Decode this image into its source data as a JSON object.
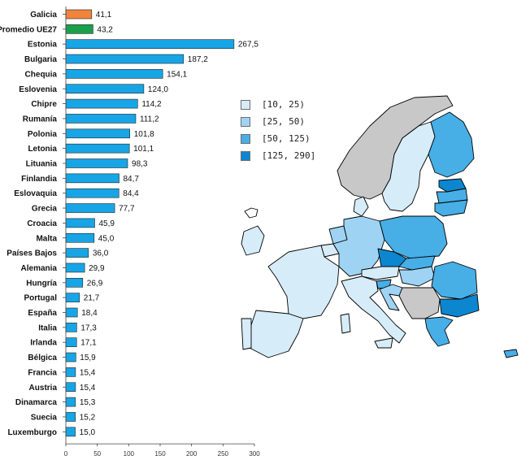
{
  "chart_data": {
    "type": "bar",
    "orientation": "horizontal",
    "categories": [
      "Galicia",
      "Promedio UE27",
      "Estonia",
      "Bulgaria",
      "Chequia",
      "Eslovenia",
      "Chipre",
      "Rumanía",
      "Polonia",
      "Letonia",
      "Lituania",
      "Finlandia",
      "Eslovaquia",
      "Grecia",
      "Croacia",
      "Malta",
      "Países Bajos",
      "Alemania",
      "Hungría",
      "Portugal",
      "España",
      "Italia",
      "Irlanda",
      "Bélgica",
      "Francia",
      "Austria",
      "Dinamarca",
      "Suecia",
      "Luxemburgo"
    ],
    "values": [
      41.1,
      43.2,
      267.5,
      187.2,
      154.1,
      124.0,
      114.2,
      111.2,
      101.8,
      101.1,
      98.3,
      84.7,
      84.4,
      77.7,
      45.9,
      45.0,
      36.0,
      29.9,
      26.9,
      21.7,
      18.4,
      17.3,
      17.1,
      15.9,
      15.4,
      15.4,
      15.3,
      15.2,
      15.0
    ],
    "value_labels": [
      "41,1",
      "43,2",
      "267,5",
      "187,2",
      "154,1",
      "124,0",
      "114,2",
      "111,2",
      "101,8",
      "101,1",
      "98,3",
      "84,7",
      "84,4",
      "77,7",
      "45,9",
      "45,0",
      "36,0",
      "29,9",
      "26,9",
      "21,7",
      "18,4",
      "17,3",
      "17,1",
      "15,9",
      "15,4",
      "15,4",
      "15,3",
      "15,2",
      "15,0"
    ],
    "xlim": [
      0,
      300
    ],
    "xticks": [
      "0",
      "50",
      "100",
      "150",
      "200",
      "250",
      "300"
    ],
    "grid": false,
    "colors": {
      "Galicia": "#f0843c",
      "Promedio UE27": "#1aa04a",
      "default": "#17a5e6"
    }
  },
  "map": {
    "type": "choropleth",
    "legend": {
      "placement": "left of map",
      "items": [
        {
          "label": "[10, 25)",
          "color": "#d6ecf8"
        },
        {
          "label": "[25, 50)",
          "color": "#9fd3f3"
        },
        {
          "label": "[50, 125)",
          "color": "#47aee6"
        },
        {
          "label": "[125, 290]",
          "color": "#0c86cf"
        }
      ]
    },
    "no_data_color": "#c8c8c8"
  }
}
